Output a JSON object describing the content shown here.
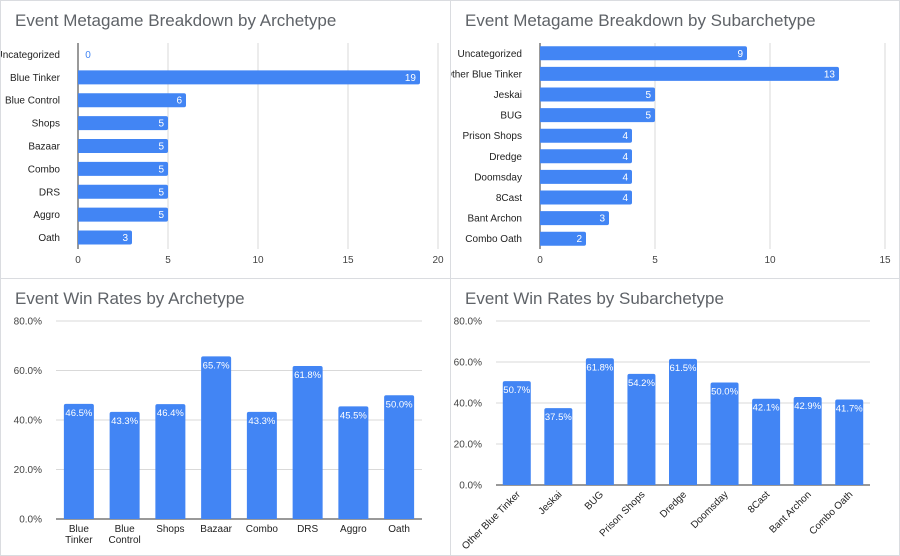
{
  "charts": [
    {
      "title": "Event Metagame Breakdown by Archetype",
      "chart_data": {
        "type": "bar",
        "orientation": "horizontal",
        "categories": [
          "Uncategorized",
          "Blue Tinker",
          "Blue Control",
          "Shops",
          "Bazaar",
          "Combo",
          "DRS",
          "Aggro",
          "Oath"
        ],
        "values": [
          0,
          19,
          6,
          5,
          5,
          5,
          5,
          5,
          3
        ],
        "value_labels": [
          "0",
          "19",
          "6",
          "5",
          "5",
          "5",
          "5",
          "5",
          "3"
        ],
        "xlim": [
          0,
          20
        ],
        "xticks": [
          0,
          5,
          10,
          15,
          20
        ],
        "xtick_labels": [
          "0",
          "5",
          "10",
          "15",
          "20"
        ],
        "grid": true,
        "bar_color": "#4285f4"
      }
    },
    {
      "title": "Event Metagame Breakdown by Subarchetype",
      "chart_data": {
        "type": "bar",
        "orientation": "horizontal",
        "categories": [
          "Uncategorized",
          "Other Blue Tinker",
          "Jeskai",
          "BUG",
          "Prison Shops",
          "Dredge",
          "Doomsday",
          "8Cast",
          "Bant Archon",
          "Combo Oath"
        ],
        "values": [
          9,
          13,
          5,
          5,
          4,
          4,
          4,
          4,
          3,
          2
        ],
        "value_labels": [
          "9",
          "13",
          "5",
          "5",
          "4",
          "4",
          "4",
          "4",
          "3",
          "2"
        ],
        "xlim": [
          0,
          15
        ],
        "xticks": [
          0,
          5,
          10,
          15
        ],
        "xtick_labels": [
          "0",
          "5",
          "10",
          "15"
        ],
        "grid": true,
        "bar_color": "#4285f4"
      }
    },
    {
      "title": "Event Win Rates by Archetype",
      "chart_data": {
        "type": "bar",
        "orientation": "vertical",
        "categories": [
          [
            "Blue",
            "Tinker"
          ],
          [
            "Blue",
            "Control"
          ],
          [
            "Shops"
          ],
          [
            "Bazaar"
          ],
          [
            "Combo"
          ],
          [
            "DRS"
          ],
          [
            "Aggro"
          ],
          [
            "Oath"
          ]
        ],
        "values": [
          46.5,
          43.3,
          46.4,
          65.7,
          43.3,
          61.8,
          45.5,
          50.0
        ],
        "value_labels": [
          "46.5%",
          "43.3%",
          "46.4%",
          "65.7%",
          "43.3%",
          "61.8%",
          "45.5%",
          "50.0%"
        ],
        "ylim": [
          0,
          80
        ],
        "yticks": [
          0,
          20,
          40,
          60,
          80
        ],
        "ytick_labels": [
          "0.0%",
          "20.0%",
          "40.0%",
          "60.0%",
          "80.0%"
        ],
        "grid": true,
        "bar_color": "#4285f4"
      }
    },
    {
      "title": "Event Win Rates by Subarchetype",
      "chart_data": {
        "type": "bar",
        "orientation": "vertical",
        "categories": [
          "Other Blue Tinker",
          "Jeskai",
          "BUG",
          "Prison Shops",
          "Dredge",
          "Doomsday",
          "8Cast",
          "Bant Archon",
          "Combo Oath"
        ],
        "values": [
          50.7,
          37.5,
          61.8,
          54.2,
          61.5,
          50.0,
          42.1,
          42.9,
          41.7
        ],
        "value_labels": [
          "50.7%",
          "37.5%",
          "61.8%",
          "54.2%",
          "61.5%",
          "50.0%",
          "42.1%",
          "42.9%",
          "41.7%"
        ],
        "ylim": [
          0,
          80
        ],
        "yticks": [
          0,
          20,
          40,
          60,
          80
        ],
        "ytick_labels": [
          "0.0%",
          "20.0%",
          "40.0%",
          "60.0%",
          "80.0%"
        ],
        "grid": true,
        "rotated_labels": true,
        "bar_color": "#4285f4"
      }
    }
  ]
}
